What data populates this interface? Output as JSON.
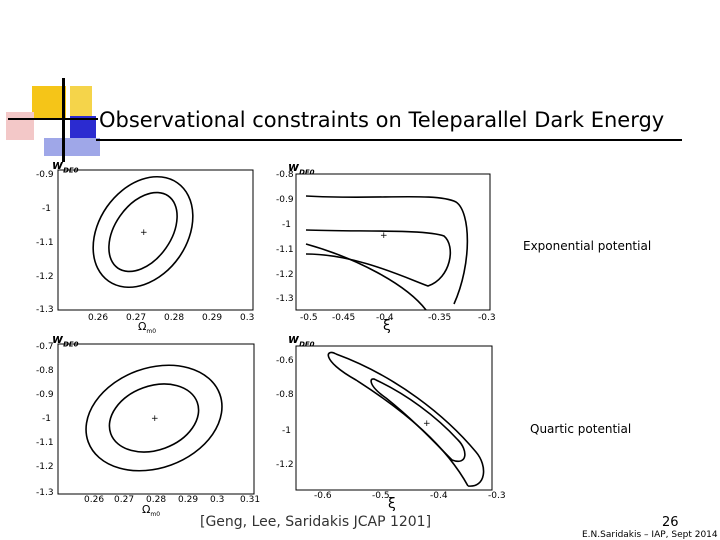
{
  "slide": {
    "title": "Observational constraints on Teleparallel Dark Energy",
    "label_top": "Exponential potential",
    "label_bottom": "Quartic potential",
    "citation": "[Geng, Lee, Saridakis  JCAP 1201]",
    "page_number": "26",
    "credit": "E.N.Saridakis – IAP, Sept 2014",
    "colors": {
      "accent_yellow": "#f5c518",
      "accent_blue": "#2b2bd0",
      "accent_lightblue": "#9fa7e8",
      "rule": "#000000"
    }
  },
  "plots": {
    "tl": {
      "ylabel": "w",
      "ylabel_sub": "DE0",
      "xlabel": "Ω",
      "xlabel_sub": "m0",
      "yticks": [
        "-0.9",
        "-1",
        "-1.1",
        "-1.2",
        "-1.3"
      ],
      "xticks": [
        "0.26",
        "0.27",
        "0.28",
        "0.29",
        "0.3"
      ]
    },
    "tr": {
      "ylabel": "w",
      "ylabel_sub": "DE0",
      "xlabel": "ξ",
      "yticks": [
        "-0.8",
        "-0.9",
        "-1",
        "-1.1",
        "-1.2",
        "-1.3"
      ],
      "xticks": [
        "-0.5",
        "-0.45",
        "-0.4",
        "-0.35",
        "-0.3"
      ]
    },
    "bl": {
      "ylabel": "w",
      "ylabel_sub": "DE0",
      "xlabel": "Ω",
      "xlabel_sub": "m0",
      "yticks": [
        "-0.7",
        "-0.8",
        "-0.9",
        "-1",
        "-1.1",
        "-1.2",
        "-1.3"
      ],
      "xticks": [
        "0.26",
        "0.27",
        "0.28",
        "0.29",
        "0.3",
        "0.31"
      ]
    },
    "br": {
      "ylabel": "w",
      "ylabel_sub": "DE0",
      "xlabel": "ξ",
      "yticks": [
        "-0.6",
        "-0.8",
        "-1",
        "-1.2"
      ],
      "xticks": [
        "-0.6",
        "-0.5",
        "-0.4",
        "-0.3"
      ]
    }
  }
}
